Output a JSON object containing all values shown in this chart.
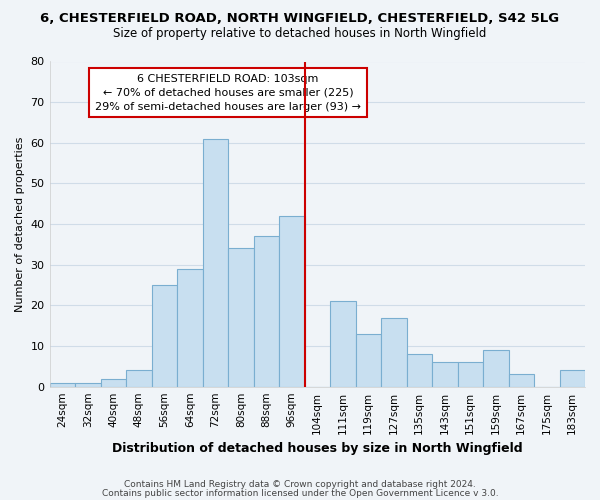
{
  "title": "6, CHESTERFIELD ROAD, NORTH WINGFIELD, CHESTERFIELD, S42 5LG",
  "subtitle": "Size of property relative to detached houses in North Wingfield",
  "xlabel": "Distribution of detached houses by size in North Wingfield",
  "ylabel": "Number of detached properties",
  "bar_color": "#c8dff0",
  "bar_edge_color": "#7aaed0",
  "categories": [
    "24sqm",
    "32sqm",
    "40sqm",
    "48sqm",
    "56sqm",
    "64sqm",
    "72sqm",
    "80sqm",
    "88sqm",
    "96sqm",
    "104sqm",
    "111sqm",
    "119sqm",
    "127sqm",
    "135sqm",
    "143sqm",
    "151sqm",
    "159sqm",
    "167sqm",
    "175sqm",
    "183sqm"
  ],
  "values": [
    1,
    1,
    2,
    4,
    25,
    29,
    61,
    34,
    37,
    42,
    0,
    21,
    13,
    17,
    8,
    6,
    6,
    9,
    3,
    0,
    4
  ],
  "vline_x_idx": 10,
  "vline_color": "#cc0000",
  "annotation_title": "6 CHESTERFIELD ROAD: 103sqm",
  "annotation_line1": "← 70% of detached houses are smaller (225)",
  "annotation_line2": "29% of semi-detached houses are larger (93) →",
  "annotation_box_color": "#ffffff",
  "annotation_box_edge": "#cc0000",
  "ylim": [
    0,
    80
  ],
  "yticks": [
    0,
    10,
    20,
    30,
    40,
    50,
    60,
    70,
    80
  ],
  "footer1": "Contains HM Land Registry data © Crown copyright and database right 2024.",
  "footer2": "Contains public sector information licensed under the Open Government Licence v 3.0.",
  "background_color": "#f0f4f8",
  "grid_color": "#d0dce8"
}
